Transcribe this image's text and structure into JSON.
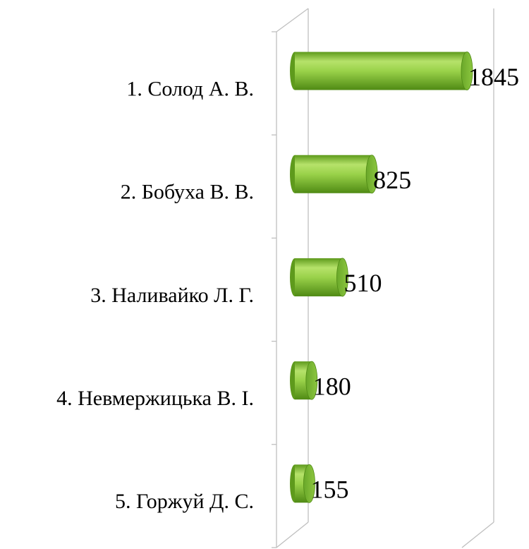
{
  "chart_data": {
    "type": "bar",
    "orientation": "horizontal",
    "categories": [
      "1. Солод А. В.",
      "2. Бобуха В. В.",
      "3. Наливайко Л. Г.",
      "4. Невмержицька В. І.",
      "5. Горжуй Д. С."
    ],
    "values": [
      1845,
      825,
      510,
      180,
      155
    ],
    "color": "#8cc63f"
  }
}
